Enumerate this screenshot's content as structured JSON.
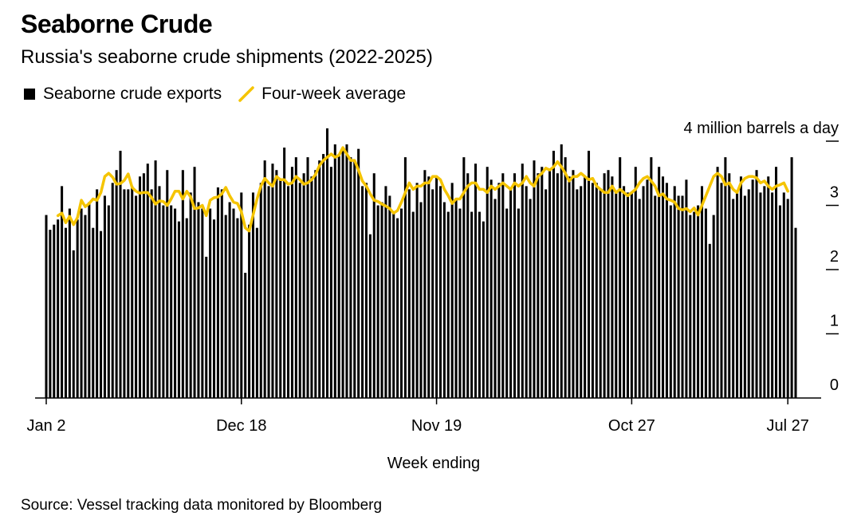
{
  "title": "Seaborne Crude",
  "subtitle": "Russia's seaborne crude shipments (2022-2025)",
  "legend": [
    {
      "label": "Seaborne crude exports",
      "color": "#000000",
      "kind": "bar"
    },
    {
      "label": "Four-week average",
      "color": "#f5c400",
      "kind": "line"
    }
  ],
  "source": "Source: Vessel tracking data monitored by Bloomberg",
  "chart_data": {
    "type": "bar",
    "xlabel": "Week ending",
    "ylabel": "",
    "yunit": "million barrels a day",
    "ylim": [
      0,
      4
    ],
    "yticks": [
      0,
      1,
      2,
      3,
      4
    ],
    "ytick_labels": [
      "0",
      "1",
      "2",
      "3",
      "4 million barrels a day"
    ],
    "xtick_labels": [
      "Jan 2",
      "Dec 18",
      "Nov 19",
      "Oct 27",
      "Jul 27"
    ],
    "xtick_indices": [
      0,
      50,
      100,
      150,
      190
    ],
    "grid": false,
    "series": [
      {
        "name": "Seaborne crude exports",
        "type": "bar",
        "color": "#000000",
        "values": [
          2.85,
          2.62,
          2.7,
          2.78,
          3.3,
          2.65,
          2.95,
          2.3,
          2.78,
          2.95,
          2.85,
          3.05,
          2.65,
          3.25,
          2.6,
          3.15,
          3.0,
          3.35,
          3.55,
          3.85,
          3.25,
          3.25,
          3.3,
          3.15,
          3.45,
          3.5,
          3.65,
          3.25,
          3.7,
          3.3,
          3.0,
          3.55,
          3.0,
          2.95,
          2.75,
          3.55,
          2.8,
          3.2,
          3.6,
          3.05,
          2.95,
          2.2,
          2.95,
          2.78,
          3.28,
          3.25,
          2.85,
          3.05,
          2.95,
          2.8,
          3.2,
          1.95,
          2.7,
          3.2,
          2.65,
          3.35,
          3.7,
          3.3,
          3.65,
          3.55,
          3.4,
          3.9,
          3.3,
          3.6,
          3.75,
          3.35,
          3.5,
          3.75,
          3.45,
          3.55,
          3.7,
          3.8,
          4.2,
          3.6,
          3.95,
          3.8,
          3.85,
          3.95,
          3.75,
          3.7,
          3.88,
          3.3,
          3.35,
          2.55,
          3.5,
          3.0,
          3.05,
          3.3,
          3.15,
          2.9,
          2.8,
          2.95,
          3.75,
          3.25,
          2.9,
          3.35,
          3.05,
          3.55,
          3.45,
          3.25,
          3.45,
          3.3,
          3.05,
          2.9,
          3.35,
          3.1,
          2.95,
          3.75,
          3.5,
          2.9,
          3.65,
          2.9,
          2.75,
          3.6,
          3.4,
          3.1,
          3.35,
          3.5,
          2.95,
          3.25,
          3.5,
          2.95,
          3.65,
          3.3,
          3.1,
          3.7,
          3.5,
          3.6,
          3.25,
          3.55,
          3.85,
          3.5,
          3.95,
          3.75,
          3.45,
          3.55,
          3.25,
          3.3,
          3.45,
          3.85,
          3.35,
          3.35,
          3.25,
          3.5,
          3.55,
          3.45,
          3.2,
          3.75,
          3.3,
          3.2,
          3.2,
          3.6,
          3.1,
          3.3,
          3.4,
          3.75,
          3.15,
          3.6,
          3.45,
          3.35,
          3.0,
          3.3,
          3.15,
          3.15,
          3.4,
          2.85,
          2.9,
          3.0,
          3.3,
          2.95,
          2.4,
          2.85,
          3.6,
          3.35,
          3.75,
          3.5,
          3.1,
          3.2,
          3.45,
          3.15,
          3.25,
          3.4,
          3.55,
          3.2,
          3.3,
          3.45,
          3.2,
          3.6,
          3.0,
          3.2,
          3.1,
          3.75,
          2.65
        ]
      },
      {
        "name": "Four-week average",
        "type": "line",
        "color": "#f5c400",
        "values": [
          null,
          null,
          null,
          2.84,
          2.88,
          2.73,
          2.83,
          2.7,
          2.81,
          3.08,
          2.98,
          3.03,
          3.1,
          3.08,
          3.2,
          3.45,
          3.5,
          3.44,
          3.33,
          3.34,
          3.39,
          3.49,
          3.28,
          3.22,
          3.19,
          3.2,
          3.2,
          3.12,
          3.02,
          3.07,
          3.06,
          3.0,
          3.1,
          3.22,
          3.22,
          3.1,
          3.22,
          3.13,
          2.95,
          2.96,
          3.0,
          2.84,
          3.08,
          3.12,
          3.13,
          3.18,
          3.28,
          3.15,
          3.05,
          3.03,
          2.9,
          2.65,
          2.6,
          2.85,
          3.1,
          3.3,
          3.42,
          3.35,
          3.3,
          3.45,
          3.4,
          3.4,
          3.33,
          3.35,
          3.45,
          3.4,
          3.33,
          3.35,
          3.4,
          3.48,
          3.62,
          3.7,
          3.75,
          3.8,
          3.75,
          3.78,
          3.9,
          3.8,
          3.7,
          3.7,
          3.55,
          3.38,
          3.3,
          3.18,
          3.08,
          3.06,
          3.02,
          2.99,
          2.95,
          2.88,
          2.92,
          3.05,
          3.2,
          3.35,
          3.25,
          3.3,
          3.3,
          3.35,
          3.35,
          3.45,
          3.45,
          3.4,
          3.25,
          3.15,
          3.03,
          3.1,
          3.1,
          3.2,
          3.3,
          3.35,
          3.35,
          3.25,
          3.25,
          3.2,
          3.3,
          3.25,
          3.3,
          3.35,
          3.3,
          3.25,
          3.35,
          3.3,
          3.35,
          3.45,
          3.35,
          3.3,
          3.45,
          3.5,
          3.58,
          3.55,
          3.6,
          3.68,
          3.6,
          3.5,
          3.38,
          3.45,
          3.45,
          3.5,
          3.45,
          3.4,
          3.42,
          3.3,
          3.25,
          3.2,
          3.2,
          3.3,
          3.2,
          3.25,
          3.2,
          3.15,
          3.2,
          3.25,
          3.35,
          3.42,
          3.45,
          3.38,
          3.3,
          3.15,
          3.18,
          3.1,
          3.08,
          3.05,
          2.95,
          2.93,
          2.95,
          2.9,
          2.96,
          2.85,
          3.0,
          3.15,
          3.3,
          3.45,
          3.5,
          3.45,
          3.32,
          3.35,
          3.25,
          3.2,
          3.35,
          3.42,
          3.45,
          3.45,
          3.43,
          3.35,
          3.38,
          3.3,
          3.25,
          3.3,
          3.32,
          3.35,
          3.22
        ]
      }
    ]
  }
}
